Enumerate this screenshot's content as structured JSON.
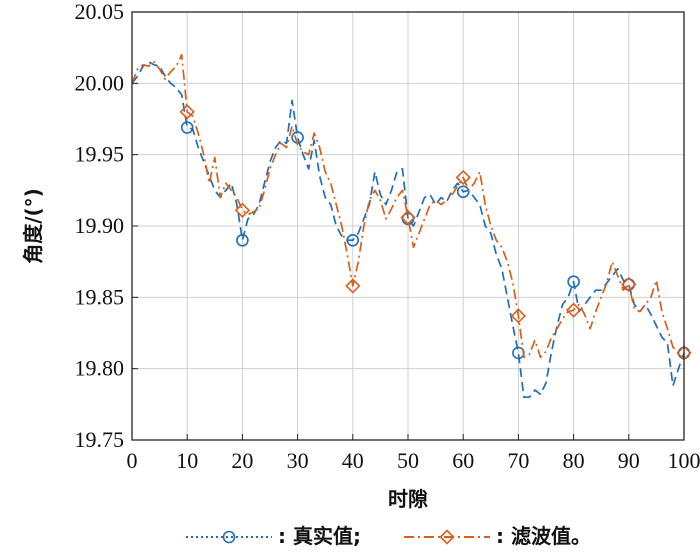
{
  "chart_data": {
    "type": "line",
    "xlabel": "时隙",
    "ylabel": "角度/(°)",
    "xlim": [
      0,
      100
    ],
    "ylim": [
      19.75,
      20.05
    ],
    "x_ticks": [
      "0",
      "10",
      "20",
      "30",
      "40",
      "50",
      "60",
      "70",
      "80",
      "90",
      "100"
    ],
    "y_ticks": [
      "19.75",
      "19.80",
      "19.85",
      "19.90",
      "19.95",
      "20.00",
      "20.05"
    ],
    "grid": true,
    "legend_position": "bottom",
    "series": [
      {
        "name": "真实值",
        "legend_label": ": 真实值;",
        "color": "#1f6fb8",
        "line_style": "dashed",
        "marker": "circle",
        "marker_x": [
          10,
          20,
          30,
          40,
          50,
          60,
          70,
          80,
          90,
          100
        ],
        "x": [
          0,
          1,
          2,
          3,
          4,
          5,
          6,
          7,
          8,
          9,
          10,
          11,
          12,
          13,
          14,
          15,
          16,
          17,
          18,
          19,
          20,
          21,
          22,
          23,
          24,
          25,
          26,
          27,
          28,
          29,
          30,
          31,
          32,
          33,
          34,
          35,
          36,
          37,
          38,
          39,
          40,
          41,
          42,
          43,
          44,
          45,
          46,
          47,
          48,
          49,
          50,
          51,
          52,
          53,
          54,
          55,
          56,
          57,
          58,
          59,
          60,
          61,
          62,
          63,
          64,
          65,
          66,
          67,
          68,
          69,
          70,
          71,
          72,
          73,
          74,
          75,
          76,
          77,
          78,
          79,
          80,
          81,
          82,
          83,
          84,
          85,
          86,
          87,
          88,
          89,
          90,
          91,
          92,
          93,
          94,
          95,
          96,
          97,
          98,
          99,
          100
        ],
        "values": [
          20.0,
          20.005,
          20.012,
          20.015,
          20.013,
          20.012,
          20.005,
          20.0,
          19.997,
          19.992,
          19.969,
          19.968,
          19.955,
          19.945,
          19.935,
          19.925,
          19.92,
          19.925,
          19.93,
          19.915,
          19.89,
          19.905,
          19.908,
          19.915,
          19.93,
          19.945,
          19.955,
          19.96,
          19.958,
          19.988,
          19.962,
          19.95,
          19.94,
          19.96,
          19.935,
          19.92,
          19.915,
          19.9,
          19.893,
          19.89,
          19.89,
          19.895,
          19.905,
          19.915,
          19.938,
          19.922,
          19.915,
          19.925,
          19.938,
          19.94,
          19.905,
          19.9,
          19.91,
          19.92,
          19.922,
          19.915,
          19.92,
          19.917,
          19.925,
          19.93,
          19.924,
          19.925,
          19.92,
          19.915,
          19.9,
          19.895,
          19.88,
          19.87,
          19.85,
          19.83,
          19.811,
          19.78,
          19.78,
          19.785,
          19.782,
          19.79,
          19.812,
          19.83,
          19.845,
          19.85,
          19.861,
          19.84,
          19.845,
          19.85,
          19.855,
          19.855,
          19.86,
          19.865,
          19.87,
          19.862,
          19.859,
          19.845,
          19.84,
          19.845,
          19.838,
          19.83,
          19.822,
          19.818,
          19.788,
          19.8,
          19.811
        ]
      },
      {
        "name": "滤波值",
        "legend_label": ": 滤波值。",
        "color": "#d95f19",
        "line_style": "dashdot",
        "marker": "diamond",
        "marker_x": [
          10,
          20,
          40,
          50,
          60,
          70,
          80,
          90,
          100
        ],
        "x": [
          0,
          1,
          2,
          3,
          4,
          5,
          6,
          7,
          8,
          9,
          10,
          11,
          12,
          13,
          14,
          15,
          16,
          17,
          18,
          19,
          20,
          21,
          22,
          23,
          24,
          25,
          26,
          27,
          28,
          29,
          30,
          31,
          32,
          33,
          34,
          35,
          36,
          37,
          38,
          39,
          40,
          41,
          42,
          43,
          44,
          45,
          46,
          47,
          48,
          49,
          50,
          51,
          52,
          53,
          54,
          55,
          56,
          57,
          58,
          59,
          60,
          61,
          62,
          63,
          64,
          65,
          66,
          67,
          68,
          69,
          70,
          71,
          72,
          73,
          74,
          75,
          76,
          77,
          78,
          79,
          80,
          81,
          82,
          83,
          84,
          85,
          86,
          87,
          88,
          89,
          90,
          91,
          92,
          93,
          94,
          95,
          96,
          97,
          98,
          99,
          100
        ],
        "values": [
          20.0,
          20.01,
          20.013,
          20.012,
          20.015,
          20.01,
          20.003,
          20.008,
          20.012,
          20.02,
          19.98,
          19.977,
          19.965,
          19.95,
          19.93,
          19.948,
          19.92,
          19.93,
          19.925,
          19.92,
          19.911,
          19.908,
          19.91,
          19.912,
          19.925,
          19.94,
          19.95,
          19.958,
          19.955,
          19.97,
          19.957,
          19.952,
          19.95,
          19.965,
          19.955,
          19.938,
          19.93,
          19.915,
          19.9,
          19.88,
          19.858,
          19.875,
          19.9,
          19.918,
          19.925,
          19.918,
          19.905,
          19.912,
          19.92,
          19.925,
          19.906,
          19.885,
          19.895,
          19.905,
          19.915,
          19.918,
          19.915,
          19.918,
          19.922,
          19.928,
          19.934,
          19.925,
          19.93,
          19.938,
          19.915,
          19.9,
          19.89,
          19.885,
          19.875,
          19.86,
          19.837,
          19.808,
          19.81,
          19.82,
          19.808,
          19.812,
          19.822,
          19.828,
          19.835,
          19.84,
          19.841,
          19.845,
          19.838,
          19.828,
          19.84,
          19.85,
          19.86,
          19.875,
          19.865,
          19.855,
          19.859,
          19.842,
          19.84,
          19.845,
          19.85,
          19.862,
          19.84,
          19.828,
          19.815,
          19.812,
          19.811
        ]
      }
    ]
  }
}
